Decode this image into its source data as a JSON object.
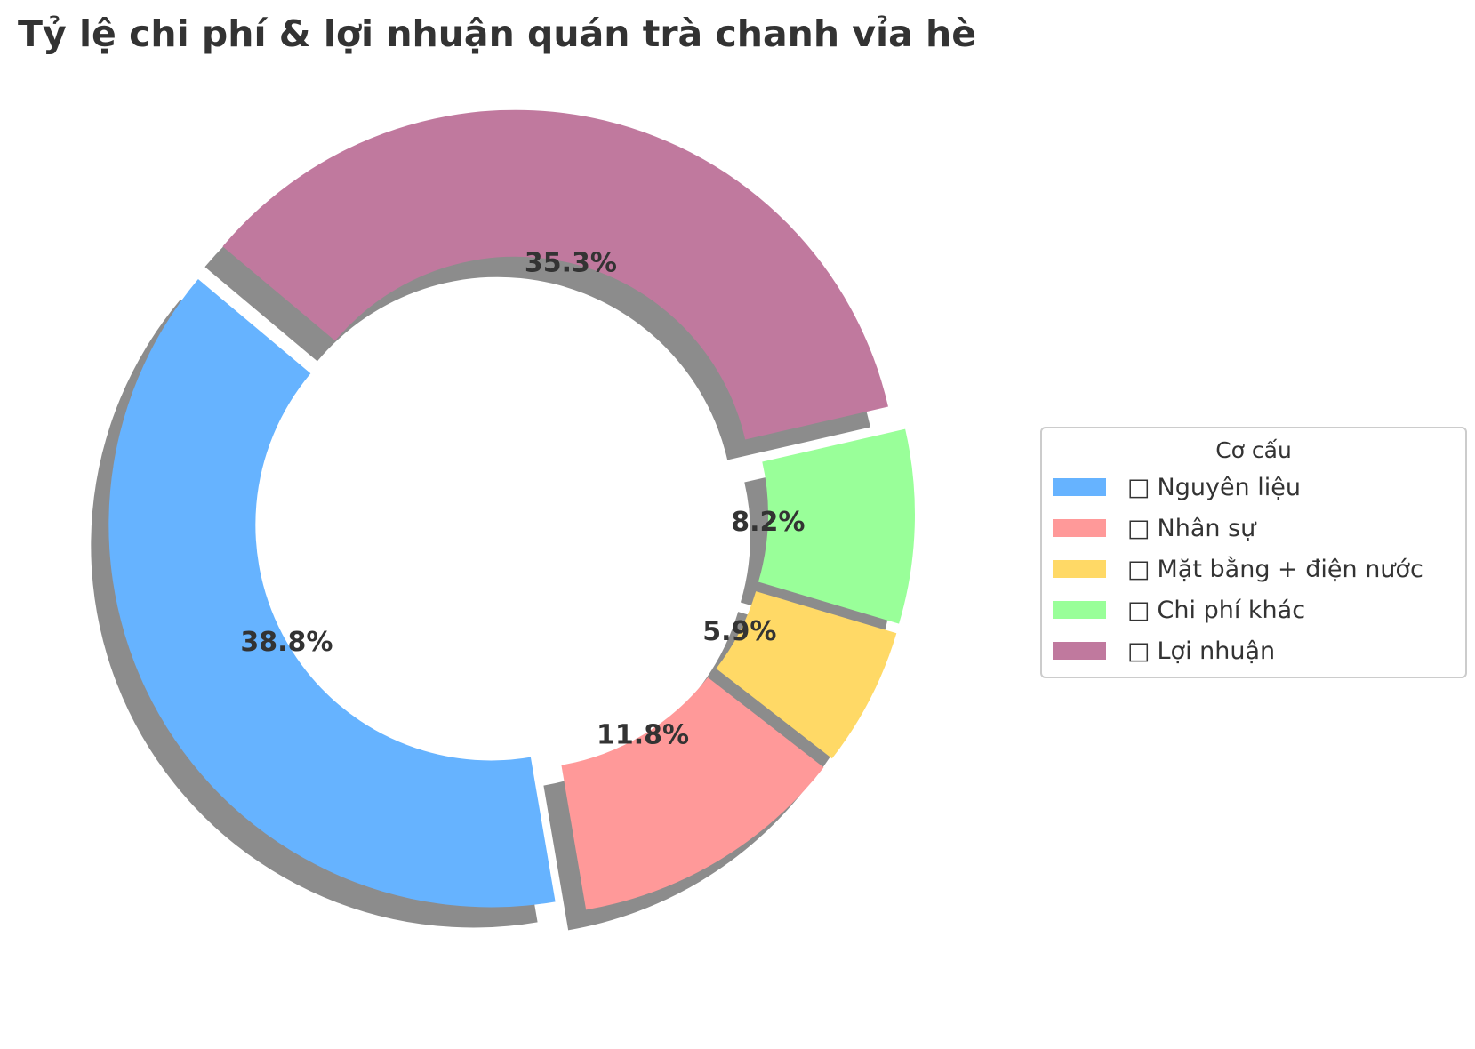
{
  "title": "Tỷ lệ chi phí & lợi nhuận quán trà chanh vỉa hè",
  "chart_data": {
    "type": "pie",
    "donut": true,
    "title": "Tỷ lệ chi phí & lợi nhuận quán trà chanh vỉa hè",
    "legend_title": "Cơ cấu",
    "legend_position": "right",
    "slices": [
      {
        "label": "Nguyên liệu",
        "icon": "ingredients-icon",
        "value": 38.8,
        "value_label": "38.8%",
        "color": "#66b3ff"
      },
      {
        "label": "Nhân sự",
        "icon": "staff-icon",
        "value": 11.8,
        "value_label": "11.8%",
        "color": "#ff9999"
      },
      {
        "label": "Mặt bằng + điện nước",
        "icon": "premises-icon",
        "value": 5.9,
        "value_label": "5.9%",
        "color": "#ffd966"
      },
      {
        "label": "Chi phí khác",
        "icon": "other-costs-icon",
        "value": 8.2,
        "value_label": "8.2%",
        "color": "#99ff99"
      },
      {
        "label": "Lợi nhuận",
        "icon": "profit-icon",
        "value": 35.3,
        "value_label": "35.3%",
        "color": "#c0799e"
      }
    ]
  }
}
